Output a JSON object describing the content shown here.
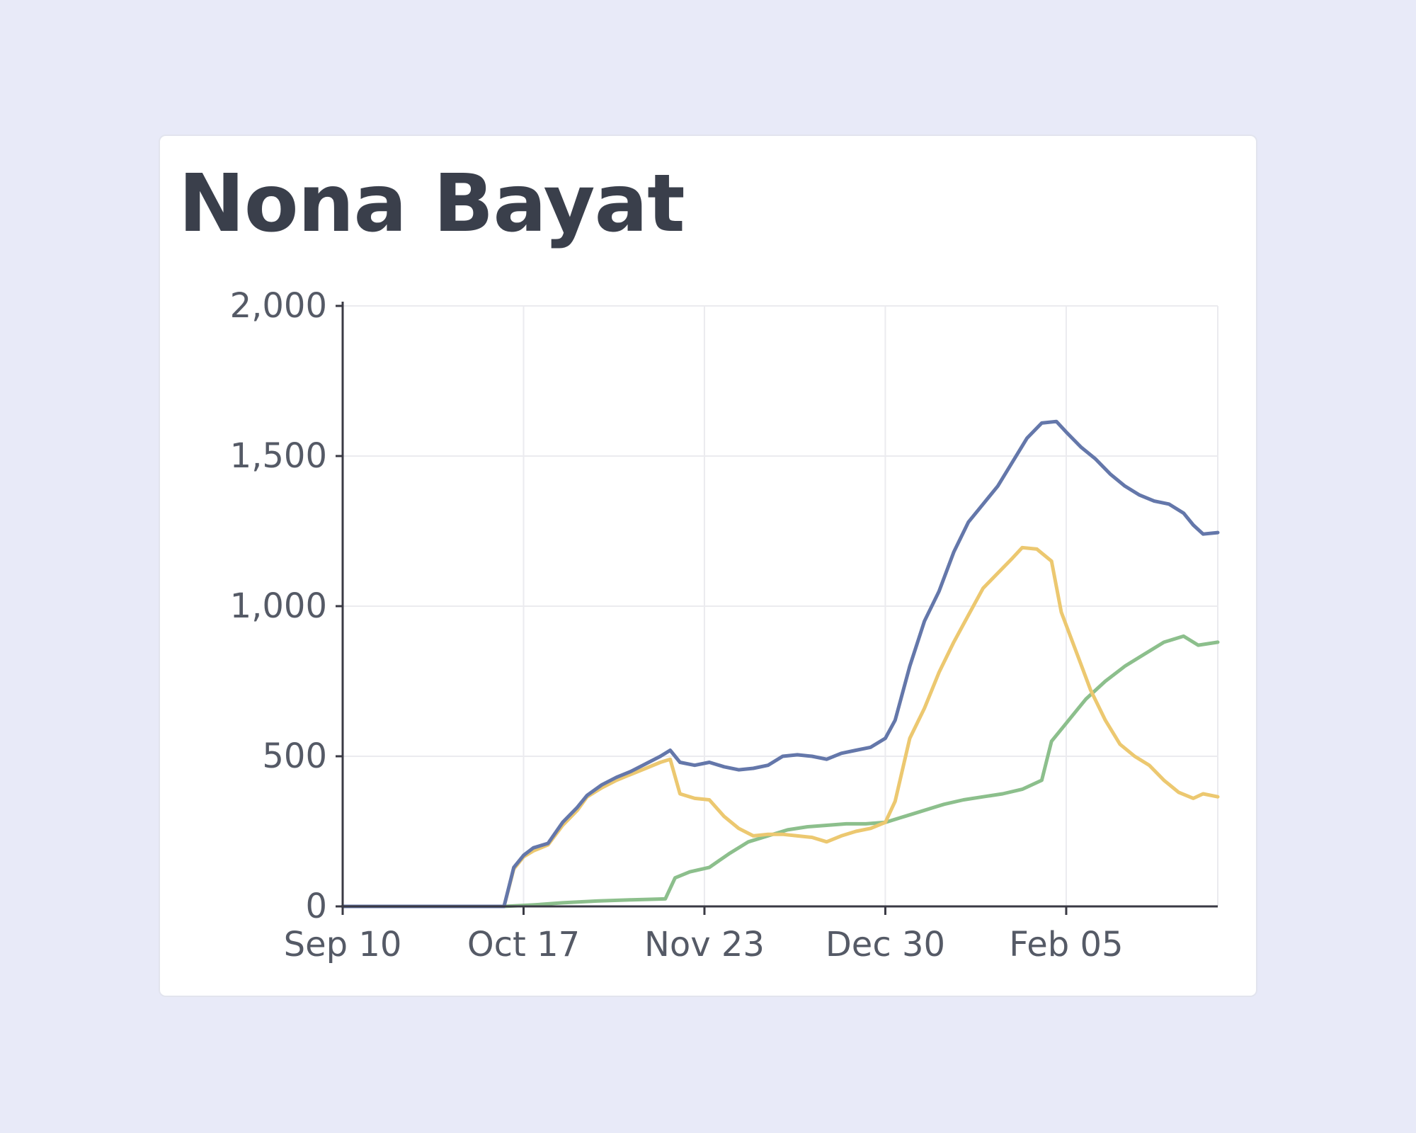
{
  "card": {
    "title": "Nona Bayat"
  },
  "colors": {
    "background": "#e8eaf8",
    "card": "#ffffff",
    "blue": "#6477aa",
    "yellow": "#ecc870",
    "green": "#8cbf8c"
  },
  "chart_data": {
    "type": "line",
    "title": "Nona Bayat",
    "xlabel": "",
    "ylabel": "",
    "x_axis": "date",
    "xlim": [
      "2020-09-10",
      "2021-03-08"
    ],
    "ylim": [
      0,
      2000
    ],
    "y_ticks": [
      0,
      500,
      1000,
      1500,
      2000
    ],
    "y_tick_labels": [
      "0",
      "500",
      "1,000",
      "1,500",
      "2,000"
    ],
    "x_ticks": [
      "2020-09-10",
      "2020-10-17",
      "2020-11-23",
      "2020-12-30",
      "2021-02-05"
    ],
    "x_tick_labels": [
      "Sep 10",
      "Oct 17",
      "Nov 23",
      "Dec 30",
      "Feb 05"
    ],
    "grid": true,
    "legend": "none",
    "series": [
      {
        "color": "#6477aa",
        "points": [
          [
            "2020-09-10",
            0
          ],
          [
            "2020-10-13",
            0
          ],
          [
            "2020-10-15",
            130
          ],
          [
            "2020-10-17",
            170
          ],
          [
            "2020-10-19",
            195
          ],
          [
            "2020-10-22",
            210
          ],
          [
            "2020-10-25",
            280
          ],
          [
            "2020-10-28",
            330
          ],
          [
            "2020-10-30",
            370
          ],
          [
            "2020-11-02",
            405
          ],
          [
            "2020-11-05",
            430
          ],
          [
            "2020-11-08",
            450
          ],
          [
            "2020-11-11",
            475
          ],
          [
            "2020-11-14",
            500
          ],
          [
            "2020-11-16",
            520
          ],
          [
            "2020-11-18",
            480
          ],
          [
            "2020-11-21",
            470
          ],
          [
            "2020-11-24",
            480
          ],
          [
            "2020-11-27",
            465
          ],
          [
            "2020-11-30",
            455
          ],
          [
            "2020-12-03",
            460
          ],
          [
            "2020-12-06",
            470
          ],
          [
            "2020-12-09",
            500
          ],
          [
            "2020-12-12",
            505
          ],
          [
            "2020-12-15",
            500
          ],
          [
            "2020-12-18",
            490
          ],
          [
            "2020-12-21",
            510
          ],
          [
            "2020-12-24",
            520
          ],
          [
            "2020-12-27",
            530
          ],
          [
            "2020-12-30",
            560
          ],
          [
            "2021-01-01",
            620
          ],
          [
            "2021-01-04",
            800
          ],
          [
            "2021-01-07",
            950
          ],
          [
            "2021-01-10",
            1050
          ],
          [
            "2021-01-13",
            1180
          ],
          [
            "2021-01-16",
            1280
          ],
          [
            "2021-01-19",
            1340
          ],
          [
            "2021-01-22",
            1400
          ],
          [
            "2021-01-25",
            1480
          ],
          [
            "2021-01-28",
            1560
          ],
          [
            "2021-01-31",
            1610
          ],
          [
            "2021-02-03",
            1615
          ],
          [
            "2021-02-05",
            1580
          ],
          [
            "2021-02-08",
            1530
          ],
          [
            "2021-02-11",
            1490
          ],
          [
            "2021-02-14",
            1440
          ],
          [
            "2021-02-17",
            1400
          ],
          [
            "2021-02-20",
            1370
          ],
          [
            "2021-02-23",
            1350
          ],
          [
            "2021-02-26",
            1340
          ],
          [
            "2021-03-01",
            1310
          ],
          [
            "2021-03-03",
            1270
          ],
          [
            "2021-03-05",
            1240
          ],
          [
            "2021-03-08",
            1245
          ]
        ]
      },
      {
        "color": "#ecc870",
        "points": [
          [
            "2020-09-10",
            0
          ],
          [
            "2020-10-13",
            0
          ],
          [
            "2020-10-15",
            125
          ],
          [
            "2020-10-17",
            165
          ],
          [
            "2020-10-19",
            185
          ],
          [
            "2020-10-22",
            205
          ],
          [
            "2020-10-25",
            270
          ],
          [
            "2020-10-28",
            320
          ],
          [
            "2020-10-30",
            365
          ],
          [
            "2020-11-02",
            395
          ],
          [
            "2020-11-05",
            420
          ],
          [
            "2020-11-08",
            440
          ],
          [
            "2020-11-11",
            460
          ],
          [
            "2020-11-14",
            480
          ],
          [
            "2020-11-16",
            490
          ],
          [
            "2020-11-18",
            375
          ],
          [
            "2020-11-21",
            360
          ],
          [
            "2020-11-24",
            355
          ],
          [
            "2020-11-27",
            300
          ],
          [
            "2020-11-30",
            260
          ],
          [
            "2020-12-03",
            235
          ],
          [
            "2020-12-06",
            240
          ],
          [
            "2020-12-09",
            240
          ],
          [
            "2020-12-12",
            235
          ],
          [
            "2020-12-15",
            230
          ],
          [
            "2020-12-18",
            215
          ],
          [
            "2020-12-21",
            235
          ],
          [
            "2020-12-24",
            250
          ],
          [
            "2020-12-27",
            260
          ],
          [
            "2020-12-30",
            280
          ],
          [
            "2021-01-01",
            350
          ],
          [
            "2021-01-04",
            560
          ],
          [
            "2021-01-07",
            660
          ],
          [
            "2021-01-10",
            780
          ],
          [
            "2021-01-13",
            880
          ],
          [
            "2021-01-16",
            970
          ],
          [
            "2021-01-19",
            1060
          ],
          [
            "2021-01-22",
            1110
          ],
          [
            "2021-01-25",
            1160
          ],
          [
            "2021-01-27",
            1195
          ],
          [
            "2021-01-30",
            1190
          ],
          [
            "2021-02-02",
            1150
          ],
          [
            "2021-02-04",
            980
          ],
          [
            "2021-02-07",
            850
          ],
          [
            "2021-02-10",
            720
          ],
          [
            "2021-02-13",
            620
          ],
          [
            "2021-02-16",
            540
          ],
          [
            "2021-02-19",
            500
          ],
          [
            "2021-02-22",
            470
          ],
          [
            "2021-02-25",
            420
          ],
          [
            "2021-02-28",
            380
          ],
          [
            "2021-03-03",
            360
          ],
          [
            "2021-03-05",
            375
          ],
          [
            "2021-03-08",
            365
          ]
        ]
      },
      {
        "color": "#8cbf8c",
        "points": [
          [
            "2020-09-10",
            0
          ],
          [
            "2020-10-13",
            0
          ],
          [
            "2020-10-19",
            5
          ],
          [
            "2020-10-25",
            12
          ],
          [
            "2020-11-01",
            18
          ],
          [
            "2020-11-08",
            22
          ],
          [
            "2020-11-15",
            25
          ],
          [
            "2020-11-17",
            95
          ],
          [
            "2020-11-20",
            115
          ],
          [
            "2020-11-24",
            130
          ],
          [
            "2020-11-28",
            175
          ],
          [
            "2020-12-02",
            215
          ],
          [
            "2020-12-06",
            235
          ],
          [
            "2020-12-10",
            255
          ],
          [
            "2020-12-14",
            265
          ],
          [
            "2020-12-18",
            270
          ],
          [
            "2020-12-22",
            275
          ],
          [
            "2020-12-26",
            275
          ],
          [
            "2020-12-30",
            280
          ],
          [
            "2021-01-03",
            300
          ],
          [
            "2021-01-07",
            320
          ],
          [
            "2021-01-11",
            340
          ],
          [
            "2021-01-15",
            355
          ],
          [
            "2021-01-19",
            365
          ],
          [
            "2021-01-23",
            375
          ],
          [
            "2021-01-27",
            390
          ],
          [
            "2021-01-31",
            420
          ],
          [
            "2021-02-02",
            550
          ],
          [
            "2021-02-05",
            610
          ],
          [
            "2021-02-09",
            690
          ],
          [
            "2021-02-13",
            750
          ],
          [
            "2021-02-17",
            800
          ],
          [
            "2021-02-21",
            840
          ],
          [
            "2021-02-25",
            880
          ],
          [
            "2021-03-01",
            900
          ],
          [
            "2021-03-04",
            870
          ],
          [
            "2021-03-08",
            880
          ]
        ]
      }
    ]
  }
}
